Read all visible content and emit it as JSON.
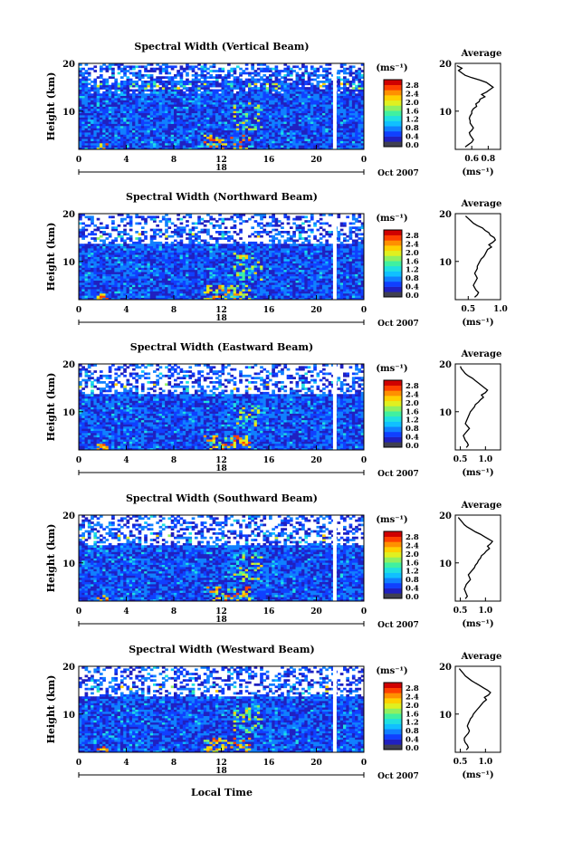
{
  "common": {
    "ylabel": "Height (km)",
    "xlabel": "Local Time",
    "x_ticks": [
      "0",
      "4",
      "8",
      "12",
      "16",
      "20",
      "0"
    ],
    "y_ticks": [
      "20",
      "10"
    ],
    "date_tick": "18",
    "date_month": "Oct 2007",
    "colorbar_unit": "(ms⁻¹)",
    "colorbar_ticks": [
      "2.8",
      "2.4",
      "2.0",
      "1.6",
      "1.2",
      "0.8",
      "0.4",
      "0.0"
    ],
    "colorbar_colors": [
      "#404050",
      "#2020c0",
      "#1040ff",
      "#1080ff",
      "#10c0ff",
      "#20e0e0",
      "#40f0a0",
      "#90f060",
      "#e0f020",
      "#ffd000",
      "#ff9000",
      "#ff4000",
      "#d00000"
    ],
    "profile_title": "Average",
    "profile_unit": "(ms⁻¹)",
    "profile_y_ticks": [
      "20",
      "10"
    ]
  },
  "chart_data": [
    {
      "type": "heatmap",
      "title": "Spectral Width (Vertical Beam)",
      "xlim": [
        0,
        24
      ],
      "ylim": [
        2,
        20
      ],
      "profile": {
        "type": "line",
        "xlim": [
          0.4,
          0.95
        ],
        "x_ticks": [
          "0.6",
          "0.8"
        ],
        "x_tick_values": [
          0.6,
          0.8
        ],
        "heights": [
          2.5,
          3,
          3.5,
          4,
          4.5,
          5,
          5.5,
          6,
          6.5,
          7,
          7.5,
          8,
          8.5,
          9,
          9.5,
          10,
          10.5,
          11,
          11.5,
          12,
          12.5,
          13,
          13.5,
          14,
          14.5,
          15,
          15.5,
          16,
          16.5,
          17,
          17.5,
          18,
          18.5,
          19,
          19.5
        ],
        "values": [
          0.52,
          0.56,
          0.6,
          0.62,
          0.6,
          0.58,
          0.57,
          0.6,
          0.62,
          0.6,
          0.58,
          0.58,
          0.57,
          0.58,
          0.6,
          0.6,
          0.62,
          0.66,
          0.65,
          0.69,
          0.7,
          0.76,
          0.72,
          0.78,
          0.82,
          0.86,
          0.82,
          0.78,
          0.7,
          0.6,
          0.52,
          0.48,
          0.44,
          0.48,
          0.42
        ]
      }
    },
    {
      "type": "heatmap",
      "title": "Spectral Width (Northward Beam)",
      "xlim": [
        0,
        24
      ],
      "ylim": [
        2,
        20
      ],
      "profile": {
        "type": "line",
        "xlim": [
          0.3,
          1.0
        ],
        "x_ticks": [
          "0.5",
          "1.0"
        ],
        "x_tick_values": [
          0.5,
          1.0
        ],
        "heights": [
          2.5,
          3,
          3.5,
          4,
          4.5,
          5,
          5.5,
          6,
          6.5,
          7,
          7.5,
          8,
          8.5,
          9,
          9.5,
          10,
          10.5,
          11,
          11.5,
          12,
          12.5,
          13,
          13.5,
          14,
          14.5,
          15,
          15.5,
          16,
          16.5,
          17,
          17.5,
          18,
          18.5,
          19,
          19.5
        ],
        "values": [
          0.6,
          0.64,
          0.66,
          0.62,
          0.6,
          0.58,
          0.6,
          0.62,
          0.64,
          0.62,
          0.6,
          0.62,
          0.64,
          0.64,
          0.66,
          0.68,
          0.7,
          0.74,
          0.76,
          0.78,
          0.8,
          0.86,
          0.82,
          0.88,
          0.92,
          0.9,
          0.84,
          0.82,
          0.76,
          0.72,
          0.64,
          0.58,
          0.54,
          0.5,
          0.46
        ]
      }
    },
    {
      "type": "heatmap",
      "title": "Spectral Width (Eastward Beam)",
      "xlim": [
        0,
        24
      ],
      "ylim": [
        2,
        20
      ],
      "profile": {
        "type": "line",
        "xlim": [
          0.4,
          1.3
        ],
        "x_ticks": [
          "0.5",
          "1.0"
        ],
        "x_tick_values": [
          0.5,
          1.0
        ],
        "heights": [
          2.5,
          3,
          3.5,
          4,
          4.5,
          5,
          5.5,
          6,
          6.5,
          7,
          7.5,
          8,
          8.5,
          9,
          9.5,
          10,
          10.5,
          11,
          11.5,
          12,
          12.5,
          13,
          13.5,
          14,
          14.5,
          15,
          15.5,
          16,
          16.5,
          17,
          17.5,
          18,
          18.5,
          19,
          19.5
        ],
        "values": [
          0.62,
          0.66,
          0.64,
          0.6,
          0.58,
          0.56,
          0.6,
          0.64,
          0.68,
          0.64,
          0.6,
          0.62,
          0.64,
          0.66,
          0.68,
          0.7,
          0.74,
          0.78,
          0.8,
          0.86,
          0.9,
          0.96,
          0.92,
          1.0,
          1.04,
          0.98,
          0.92,
          0.86,
          0.8,
          0.74,
          0.66,
          0.6,
          0.56,
          0.52,
          0.5
        ]
      }
    },
    {
      "type": "heatmap",
      "title": "Spectral Width (Southward Beam)",
      "xlim": [
        0,
        24
      ],
      "ylim": [
        2,
        20
      ],
      "profile": {
        "type": "line",
        "xlim": [
          0.4,
          1.3
        ],
        "x_ticks": [
          "0.5",
          "1.0"
        ],
        "x_tick_values": [
          0.5,
          1.0
        ],
        "heights": [
          2.5,
          3,
          3.5,
          4,
          4.5,
          5,
          5.5,
          6,
          6.5,
          7,
          7.5,
          8,
          8.5,
          9,
          9.5,
          10,
          10.5,
          11,
          11.5,
          12,
          12.5,
          13,
          13.5,
          14,
          14.5,
          15,
          15.5,
          16,
          16.5,
          17,
          17.5,
          18,
          18.5,
          19,
          19.5
        ],
        "values": [
          0.6,
          0.64,
          0.62,
          0.6,
          0.58,
          0.6,
          0.62,
          0.66,
          0.7,
          0.68,
          0.66,
          0.7,
          0.74,
          0.78,
          0.8,
          0.84,
          0.86,
          0.9,
          0.92,
          0.98,
          1.02,
          1.08,
          1.04,
          1.1,
          1.14,
          1.06,
          0.98,
          0.9,
          0.8,
          0.72,
          0.64,
          0.58,
          0.54,
          0.5,
          0.46
        ]
      }
    },
    {
      "type": "heatmap",
      "title": "Spectral Width (Westward Beam)",
      "xlim": [
        0,
        24
      ],
      "ylim": [
        2,
        20
      ],
      "profile": {
        "type": "line",
        "xlim": [
          0.4,
          1.3
        ],
        "x_ticks": [
          "0.5",
          "1.0"
        ],
        "x_tick_values": [
          0.5,
          1.0
        ],
        "heights": [
          2.5,
          3,
          3.5,
          4,
          4.5,
          5,
          5.5,
          6,
          6.5,
          7,
          7.5,
          8,
          8.5,
          9,
          9.5,
          10,
          10.5,
          11,
          11.5,
          12,
          12.5,
          13,
          13.5,
          14,
          14.5,
          15,
          15.5,
          16,
          16.5,
          17,
          17.5,
          18,
          18.5,
          19,
          19.5
        ],
        "values": [
          0.62,
          0.66,
          0.64,
          0.6,
          0.58,
          0.58,
          0.62,
          0.66,
          0.68,
          0.66,
          0.64,
          0.66,
          0.68,
          0.7,
          0.74,
          0.76,
          0.8,
          0.84,
          0.88,
          0.92,
          0.96,
          1.02,
          0.98,
          1.06,
          1.1,
          1.04,
          0.96,
          0.88,
          0.8,
          0.72,
          0.66,
          0.6,
          0.56,
          0.52,
          0.48
        ]
      }
    }
  ]
}
